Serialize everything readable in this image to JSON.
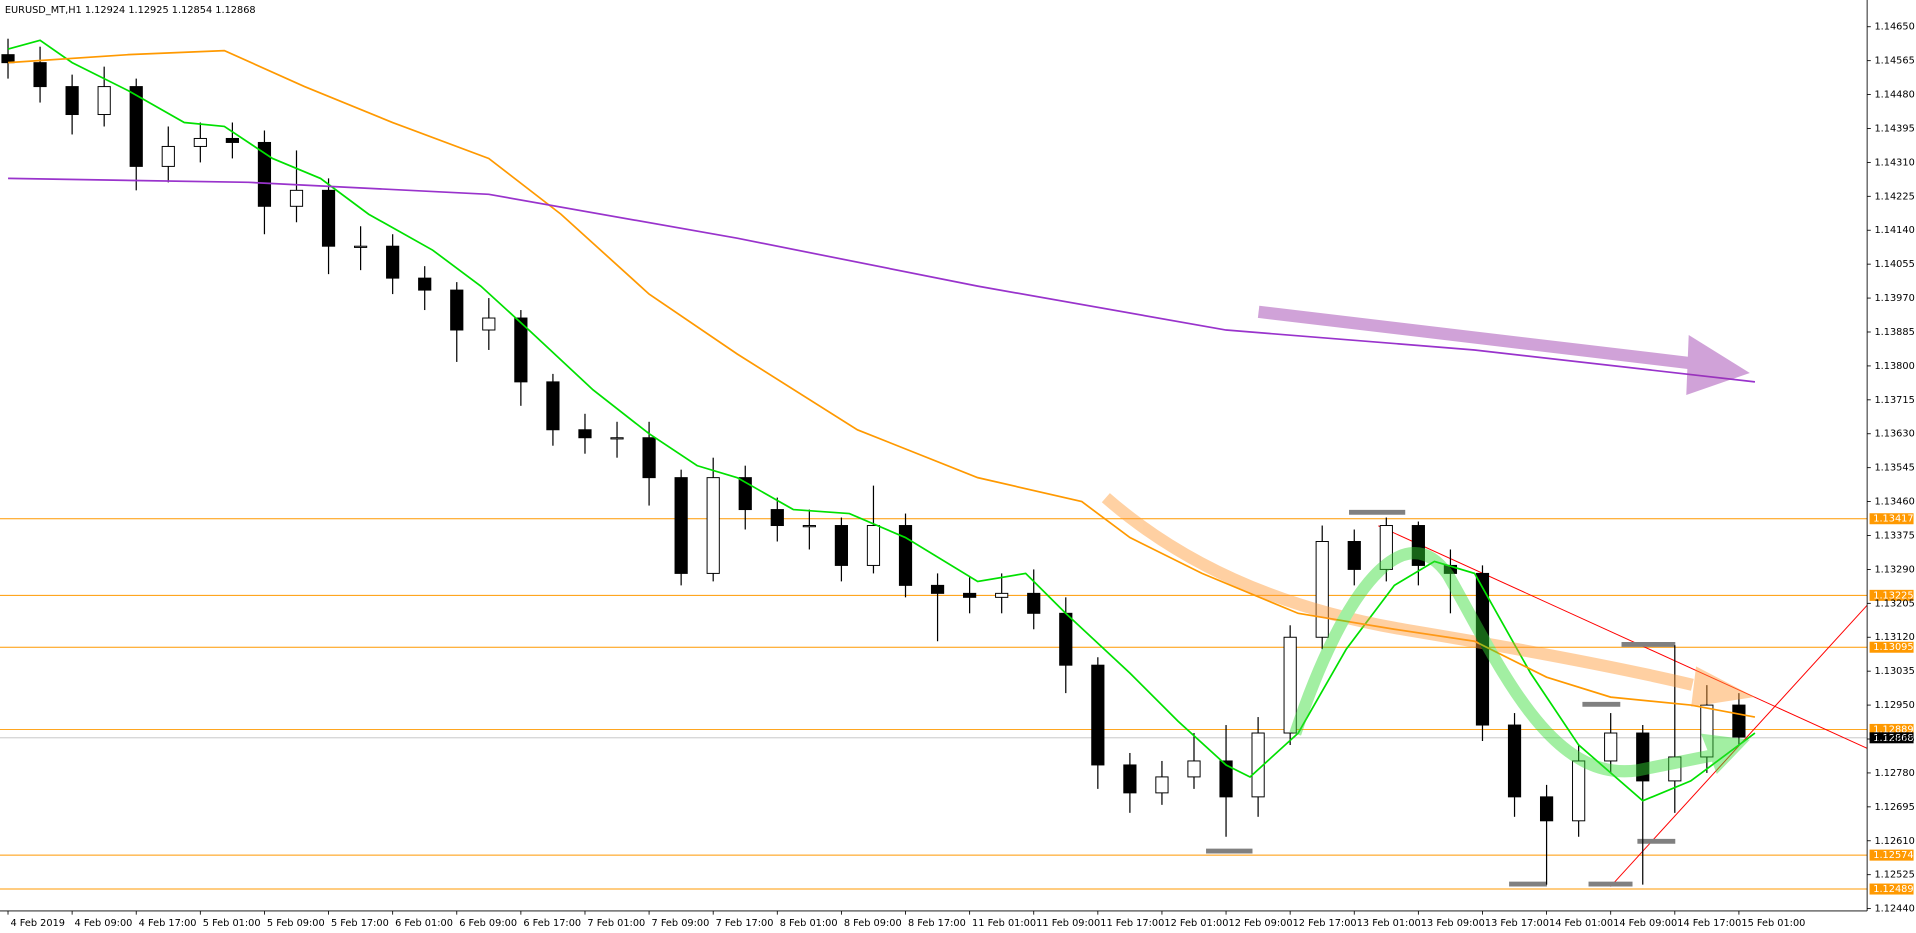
{
  "chart_data": {
    "type": "candlestick",
    "title": "EURUSD_MT,H1  1.12924 1.12925 1.12854 1.12868",
    "x": [
      0,
      4,
      8,
      12,
      16,
      20,
      24,
      28,
      32,
      36,
      40,
      44,
      48,
      52,
      56,
      60,
      64,
      68,
      72,
      76,
      80,
      84,
      88,
      92,
      96,
      100,
      104,
      108,
      112,
      116,
      120,
      124,
      128,
      132,
      136,
      140,
      144,
      148,
      152,
      156,
      160,
      164,
      168,
      172,
      176,
      180,
      184,
      188,
      192,
      196,
      200,
      204,
      208,
      212,
      216
    ],
    "open": [
      1.1458,
      1.1456,
      1.145,
      1.1443,
      1.145,
      1.143,
      1.1435,
      1.1437,
      1.1436,
      1.142,
      1.1424,
      1.141,
      1.141,
      1.1402,
      1.1399,
      1.1389,
      1.1392,
      1.1376,
      1.1364,
      1.1362,
      1.1362,
      1.1352,
      1.1328,
      1.1352,
      1.1344,
      1.134,
      1.134,
      1.133,
      1.134,
      1.1325,
      1.1323,
      1.1322,
      1.1323,
      1.1318,
      1.1305,
      1.128,
      1.1273,
      1.1277,
      1.1281,
      1.1272,
      1.1288,
      1.1312,
      1.1336,
      1.1329,
      1.134,
      1.133,
      1.1328,
      1.129,
      1.1272,
      1.1266,
      1.1281,
      1.1288,
      1.1276,
      1.1282,
      1.1295
    ],
    "high": [
      1.1462,
      1.146,
      1.1453,
      1.1455,
      1.1452,
      1.144,
      1.1441,
      1.1441,
      1.1439,
      1.1434,
      1.1427,
      1.1415,
      1.1413,
      1.1405,
      1.1401,
      1.1397,
      1.1394,
      1.1378,
      1.1368,
      1.1366,
      1.1366,
      1.1354,
      1.1357,
      1.1355,
      1.1347,
      1.1344,
      1.1342,
      1.135,
      1.1343,
      1.1328,
      1.1327,
      1.1328,
      1.1329,
      1.1322,
      1.1307,
      1.1283,
      1.1281,
      1.1288,
      1.129,
      1.1292,
      1.1315,
      1.134,
      1.1339,
      1.1342,
      1.1341,
      1.1334,
      1.133,
      1.1293,
      1.1275,
      1.1285,
      1.1293,
      1.129,
      1.131,
      1.13,
      1.1298
    ],
    "low": [
      1.1452,
      1.1446,
      1.1438,
      1.144,
      1.1424,
      1.1426,
      1.1431,
      1.1432,
      1.1413,
      1.1416,
      1.1403,
      1.1404,
      1.1398,
      1.1394,
      1.1381,
      1.1384,
      1.137,
      1.136,
      1.1358,
      1.1357,
      1.1345,
      1.1325,
      1.1326,
      1.1339,
      1.1336,
      1.1334,
      1.1326,
      1.1328,
      1.1322,
      1.1311,
      1.1318,
      1.1318,
      1.1314,
      1.1298,
      1.1274,
      1.1268,
      1.127,
      1.1274,
      1.1262,
      1.1267,
      1.1285,
      1.1309,
      1.1325,
      1.1326,
      1.1325,
      1.1318,
      1.1286,
      1.1267,
      1.125,
      1.1262,
      1.1278,
      1.125,
      1.1268,
      1.1278,
      1.1285
    ],
    "close": [
      1.1456,
      1.145,
      1.1443,
      1.145,
      1.143,
      1.1435,
      1.1437,
      1.1436,
      1.142,
      1.1424,
      1.141,
      1.141,
      1.1402,
      1.1399,
      1.1389,
      1.1392,
      1.1376,
      1.1364,
      1.1362,
      1.1362,
      1.1352,
      1.1328,
      1.1352,
      1.1344,
      1.134,
      1.134,
      1.133,
      1.134,
      1.1325,
      1.1323,
      1.1322,
      1.1323,
      1.1318,
      1.1305,
      1.128,
      1.1273,
      1.1277,
      1.1281,
      1.1272,
      1.1288,
      1.1312,
      1.1336,
      1.1329,
      1.134,
      1.133,
      1.1328,
      1.129,
      1.1272,
      1.1266,
      1.1281,
      1.1288,
      1.1276,
      1.1282,
      1.1295,
      1.1287
    ],
    "series": [
      {
        "color": "#00e000",
        "x": [
          0,
          4,
          8,
          15,
          22,
          27,
          33,
          39,
          45,
          53,
          59,
          65,
          73,
          80,
          86,
          91,
          98,
          105,
          112,
          121,
          127,
          132,
          140,
          146,
          152,
          155,
          161,
          167,
          173,
          178,
          183,
          190,
          196,
          204,
          210,
          218
        ],
        "values": [
          1.14594,
          1.14616,
          1.1456,
          1.1449,
          1.1441,
          1.144,
          1.1432,
          1.1427,
          1.1418,
          1.1409,
          1.14,
          1.1389,
          1.1374,
          1.1363,
          1.1355,
          1.1352,
          1.1344,
          1.1343,
          1.1337,
          1.1326,
          1.1328,
          1.1318,
          1.1303,
          1.1291,
          1.128,
          1.1277,
          1.1288,
          1.1309,
          1.1325,
          1.1331,
          1.1328,
          1.1303,
          1.1285,
          1.1271,
          1.1276,
          1.1288
        ]
      },
      {
        "color": "#ff9900",
        "x": [
          0,
          15,
          27,
          37,
          48,
          60,
          69,
          80,
          91,
          106,
          121,
          134,
          140,
          149,
          161,
          173,
          183,
          192,
          200,
          210,
          218
        ],
        "values": [
          1.1456,
          1.1458,
          1.1459,
          1.145,
          1.1441,
          1.1432,
          1.1418,
          1.1398,
          1.1383,
          1.1364,
          1.1352,
          1.1346,
          1.1337,
          1.1328,
          1.1318,
          1.1314,
          1.1311,
          1.1302,
          1.1297,
          1.1295,
          1.1292
        ]
      },
      {
        "color": "#9933cc",
        "x": [
          0,
          30,
          60,
          91,
          121,
          152,
          183,
          218
        ],
        "values": [
          1.1427,
          1.1426,
          1.1423,
          1.1412,
          1.14,
          1.1389,
          1.1384,
          1.1376
        ]
      }
    ],
    "levels": [
      {
        "value": 1.13417
      },
      {
        "value": 1.13225
      },
      {
        "value": 1.13095
      },
      {
        "value": 1.12889
      },
      {
        "value": 1.12574
      },
      {
        "value": 1.12489
      }
    ],
    "level_color": "#ff9900",
    "current_price": 1.12868,
    "xlim": [
      -1,
      232
    ],
    "ylim": [
      1.12434,
      1.14717
    ],
    "yticks": [
      {
        "value": 1.1465,
        "label": "1.14650"
      },
      1.14565,
      {
        "value": 1.1448,
        "label": "1.14480"
      },
      1.14395,
      {
        "value": 1.1431,
        "label": "1.14310"
      },
      1.14225,
      {
        "value": 1.1414,
        "label": "1.14140"
      },
      1.14055,
      {
        "value": 1.1397,
        "label": "1.13970"
      },
      1.13885,
      {
        "value": 1.138,
        "label": "1.13800"
      },
      1.13715,
      {
        "value": 1.1363,
        "label": "1.13630"
      },
      1.13545,
      {
        "value": 1.1346,
        "label": "1.13460"
      },
      1.13375,
      {
        "value": 1.1329,
        "label": "1.13290"
      },
      1.13205,
      {
        "value": 1.1312,
        "label": "1.13120"
      },
      1.13035,
      {
        "value": 1.1295,
        "label": "1.12950"
      },
      1.12865,
      {
        "value": 1.1278,
        "label": "1.12780"
      },
      1.12695,
      {
        "value": 1.1261,
        "label": "1.12610"
      },
      1.12525,
      {
        "value": 1.1244,
        "label": "1.12440"
      }
    ],
    "xticks": [
      {
        "value": 0,
        "label": "4 Feb 2019"
      },
      {
        "value": 8,
        "label": "4 Feb 09:00"
      },
      {
        "value": 16,
        "label": "4 Feb 17:00"
      },
      {
        "value": 24,
        "label": "5 Feb 01:00"
      },
      {
        "value": 32,
        "label": "5 Feb 09:00"
      },
      {
        "value": 40,
        "label": "5 Feb 17:00"
      },
      {
        "value": 48,
        "label": "6 Feb 01:00"
      },
      {
        "value": 56,
        "label": "6 Feb 09:00"
      },
      {
        "value": 64,
        "label": "6 Feb 17:00"
      },
      {
        "value": 72,
        "label": "7 Feb 01:00"
      },
      {
        "value": 80,
        "label": "7 Feb 09:00"
      },
      {
        "value": 88,
        "label": "7 Feb 17:00"
      },
      {
        "value": 96,
        "label": "8 Feb 01:00"
      },
      {
        "value": 104,
        "label": "8 Feb 09:00"
      },
      {
        "value": 112,
        "label": "8 Feb 17:00"
      },
      {
        "value": 120,
        "label": "11 Feb 01:00"
      },
      {
        "value": 128,
        "label": "11 Feb 09:00"
      },
      {
        "value": 136,
        "label": "11 Feb 17:00"
      },
      {
        "value": 144,
        "label": "12 Feb 01:00"
      },
      {
        "value": 152,
        "label": "12 Feb 09:00"
      },
      {
        "value": 160,
        "label": "12 Feb 17:00"
      },
      {
        "value": 168,
        "label": "13 Feb 01:00"
      },
      {
        "value": 176,
        "label": "13 Feb 09:00"
      },
      {
        "value": 184,
        "label": "13 Feb 17:00"
      },
      {
        "value": 192,
        "label": "14 Feb 01:00"
      },
      {
        "value": 200,
        "label": "14 Feb 09:00"
      },
      {
        "value": 208,
        "label": "14 Feb 17:00"
      },
      {
        "value": 216,
        "label": "15 Feb 01:00"
      }
    ]
  }
}
